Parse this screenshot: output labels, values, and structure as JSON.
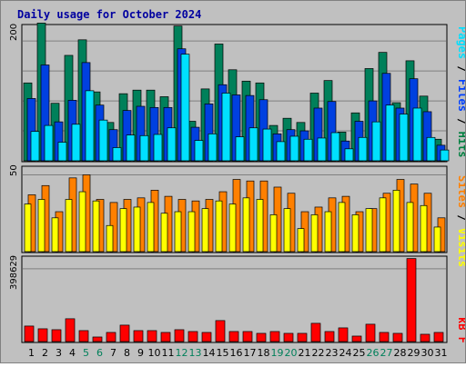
{
  "title": "Daily usage for October 2024",
  "legends": {
    "top": [
      {
        "label": "Pages",
        "color": "#00e0ff"
      },
      {
        "label": " / ",
        "color": "#000000"
      },
      {
        "label": "Files",
        "color": "#0040ff"
      },
      {
        "label": " / ",
        "color": "#000000"
      },
      {
        "label": "Hits",
        "color": "#008040"
      }
    ],
    "middle": [
      {
        "label": "Sites",
        "color": "#ff8000"
      },
      {
        "label": " / ",
        "color": "#000000"
      },
      {
        "label": "Visits",
        "color": "#ffff00"
      }
    ],
    "bottom": [
      {
        "label": "kB F",
        "color": "#ff0000"
      }
    ]
  },
  "colors": {
    "hits": "#00805a",
    "files": "#0040e0",
    "pages": "#00e0ff",
    "sites": "#ff8000",
    "visits": "#ffff00",
    "kbytes": "#ff0000",
    "weekday_label": "#000000",
    "weekend_label": "#00805a"
  },
  "chart_data": [
    {
      "type": "bar",
      "panel": "hits-files-pages",
      "ytick_label": "200",
      "ylim": [
        0,
        226
      ],
      "categories": [
        "1",
        "2",
        "3",
        "4",
        "5",
        "6",
        "7",
        "8",
        "9",
        "10",
        "11",
        "12",
        "13",
        "14",
        "15",
        "16",
        "17",
        "18",
        "19",
        "20",
        "21",
        "22",
        "23",
        "24",
        "25",
        "26",
        "27",
        "28",
        "29",
        "30",
        "31"
      ],
      "series": [
        {
          "name": "Hits",
          "values": [
            130,
            230,
            96,
            176,
            202,
            115,
            64,
            112,
            118,
            118,
            107,
            225,
            66,
            120,
            195,
            152,
            133,
            130,
            59,
            71,
            64,
            113,
            134,
            48,
            80,
            154,
            181,
            97,
            167,
            108,
            36
          ]
        },
        {
          "name": "Files",
          "values": [
            104,
            160,
            65,
            101,
            164,
            93,
            52,
            84,
            91,
            89,
            89,
            187,
            56,
            95,
            127,
            110,
            109,
            102,
            45,
            52,
            50,
            88,
            99,
            33,
            66,
            100,
            146,
            88,
            137,
            82,
            26
          ]
        },
        {
          "name": "Pages",
          "values": [
            49,
            59,
            31,
            61,
            117,
            68,
            22,
            43,
            42,
            44,
            55,
            178,
            34,
            45,
            113,
            40,
            55,
            53,
            32,
            41,
            36,
            38,
            47,
            20,
            39,
            65,
            93,
            78,
            88,
            39,
            18
          ]
        }
      ]
    },
    {
      "type": "bar",
      "panel": "sites-visits",
      "ytick_label": "50",
      "ylim": [
        0,
        55
      ],
      "categories": [
        "1",
        "2",
        "3",
        "4",
        "5",
        "6",
        "7",
        "8",
        "9",
        "10",
        "11",
        "12",
        "13",
        "14",
        "15",
        "16",
        "17",
        "18",
        "19",
        "20",
        "21",
        "22",
        "23",
        "24",
        "25",
        "26",
        "27",
        "28",
        "29",
        "30",
        "31"
      ],
      "series": [
        {
          "name": "Sites",
          "values": [
            37,
            43,
            26,
            48,
            50,
            34,
            32,
            34,
            35,
            40,
            36,
            34,
            33,
            34,
            39,
            47,
            46,
            46,
            42,
            38,
            26,
            29,
            35,
            36,
            26,
            28,
            38,
            47,
            44,
            38,
            22
          ]
        },
        {
          "name": "Visits",
          "values": [
            31,
            34,
            22,
            34,
            39,
            33,
            17,
            28,
            29,
            32,
            25,
            26,
            26,
            28,
            33,
            31,
            35,
            34,
            24,
            28,
            15,
            24,
            26,
            32,
            24,
            28,
            35,
            40,
            32,
            30,
            16
          ]
        }
      ]
    },
    {
      "type": "bar",
      "panel": "kbytes",
      "ytick_label": "398629",
      "ylim": [
        0,
        463000
      ],
      "categories": [
        "1",
        "2",
        "3",
        "4",
        "5",
        "6",
        "7",
        "8",
        "9",
        "10",
        "11",
        "12",
        "13",
        "14",
        "15",
        "16",
        "17",
        "18",
        "19",
        "20",
        "21",
        "22",
        "23",
        "24",
        "25",
        "26",
        "27",
        "28",
        "29",
        "30",
        "31"
      ],
      "series": [
        {
          "name": "kB F",
          "values": [
            85000,
            70000,
            65000,
            125000,
            60000,
            25000,
            50000,
            90000,
            60000,
            60000,
            50000,
            65000,
            55000,
            50000,
            115000,
            55000,
            55000,
            45000,
            55000,
            45000,
            45000,
            100000,
            55000,
            75000,
            30000,
            95000,
            50000,
            45000,
            455000,
            40000,
            50000
          ]
        }
      ]
    }
  ],
  "x_axis": {
    "labels": [
      "1",
      "2",
      "3",
      "4",
      "5",
      "6",
      "7",
      "8",
      "9",
      "10",
      "11",
      "12",
      "13",
      "14",
      "15",
      "16",
      "17",
      "18",
      "19",
      "20",
      "21",
      "22",
      "23",
      "24",
      "25",
      "26",
      "27",
      "28",
      "29",
      "30",
      "31"
    ],
    "weekend_days": [
      "5",
      "6",
      "12",
      "13",
      "19",
      "20",
      "26",
      "27"
    ]
  }
}
